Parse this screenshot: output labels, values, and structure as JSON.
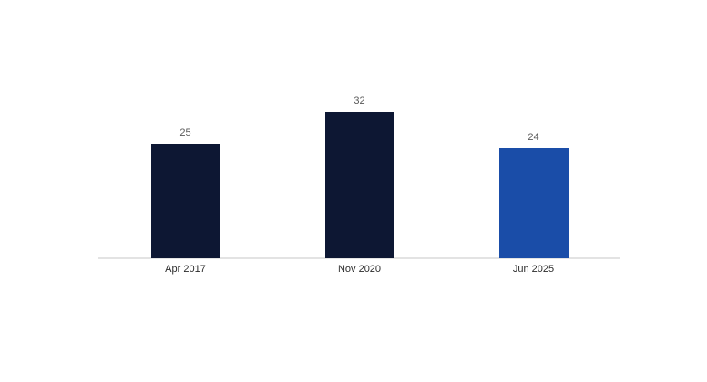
{
  "chart_data": {
    "type": "bar",
    "categories": [
      "Apr 2017",
      "Nov 2020",
      "Jun 2025"
    ],
    "values": [
      25,
      32,
      24
    ],
    "value_labels": [
      "25",
      "32",
      "24"
    ],
    "bar_colors": [
      "#0d1733",
      "#0d1733",
      "#1a4da8"
    ],
    "title": "",
    "xlabel": "",
    "ylabel": "",
    "ylim": [
      0,
      35
    ],
    "grid": false,
    "legend": false,
    "y_axis_ticks_shown": false,
    "value_labels_shown": true,
    "colors": {
      "background": "#ffffff",
      "axis_line": "#e3e3e3",
      "value_label_text": "#595959",
      "category_label_text": "#2b2b2b",
      "dark_bar": "#0d1733",
      "accent_bar": "#1a4da8"
    }
  }
}
